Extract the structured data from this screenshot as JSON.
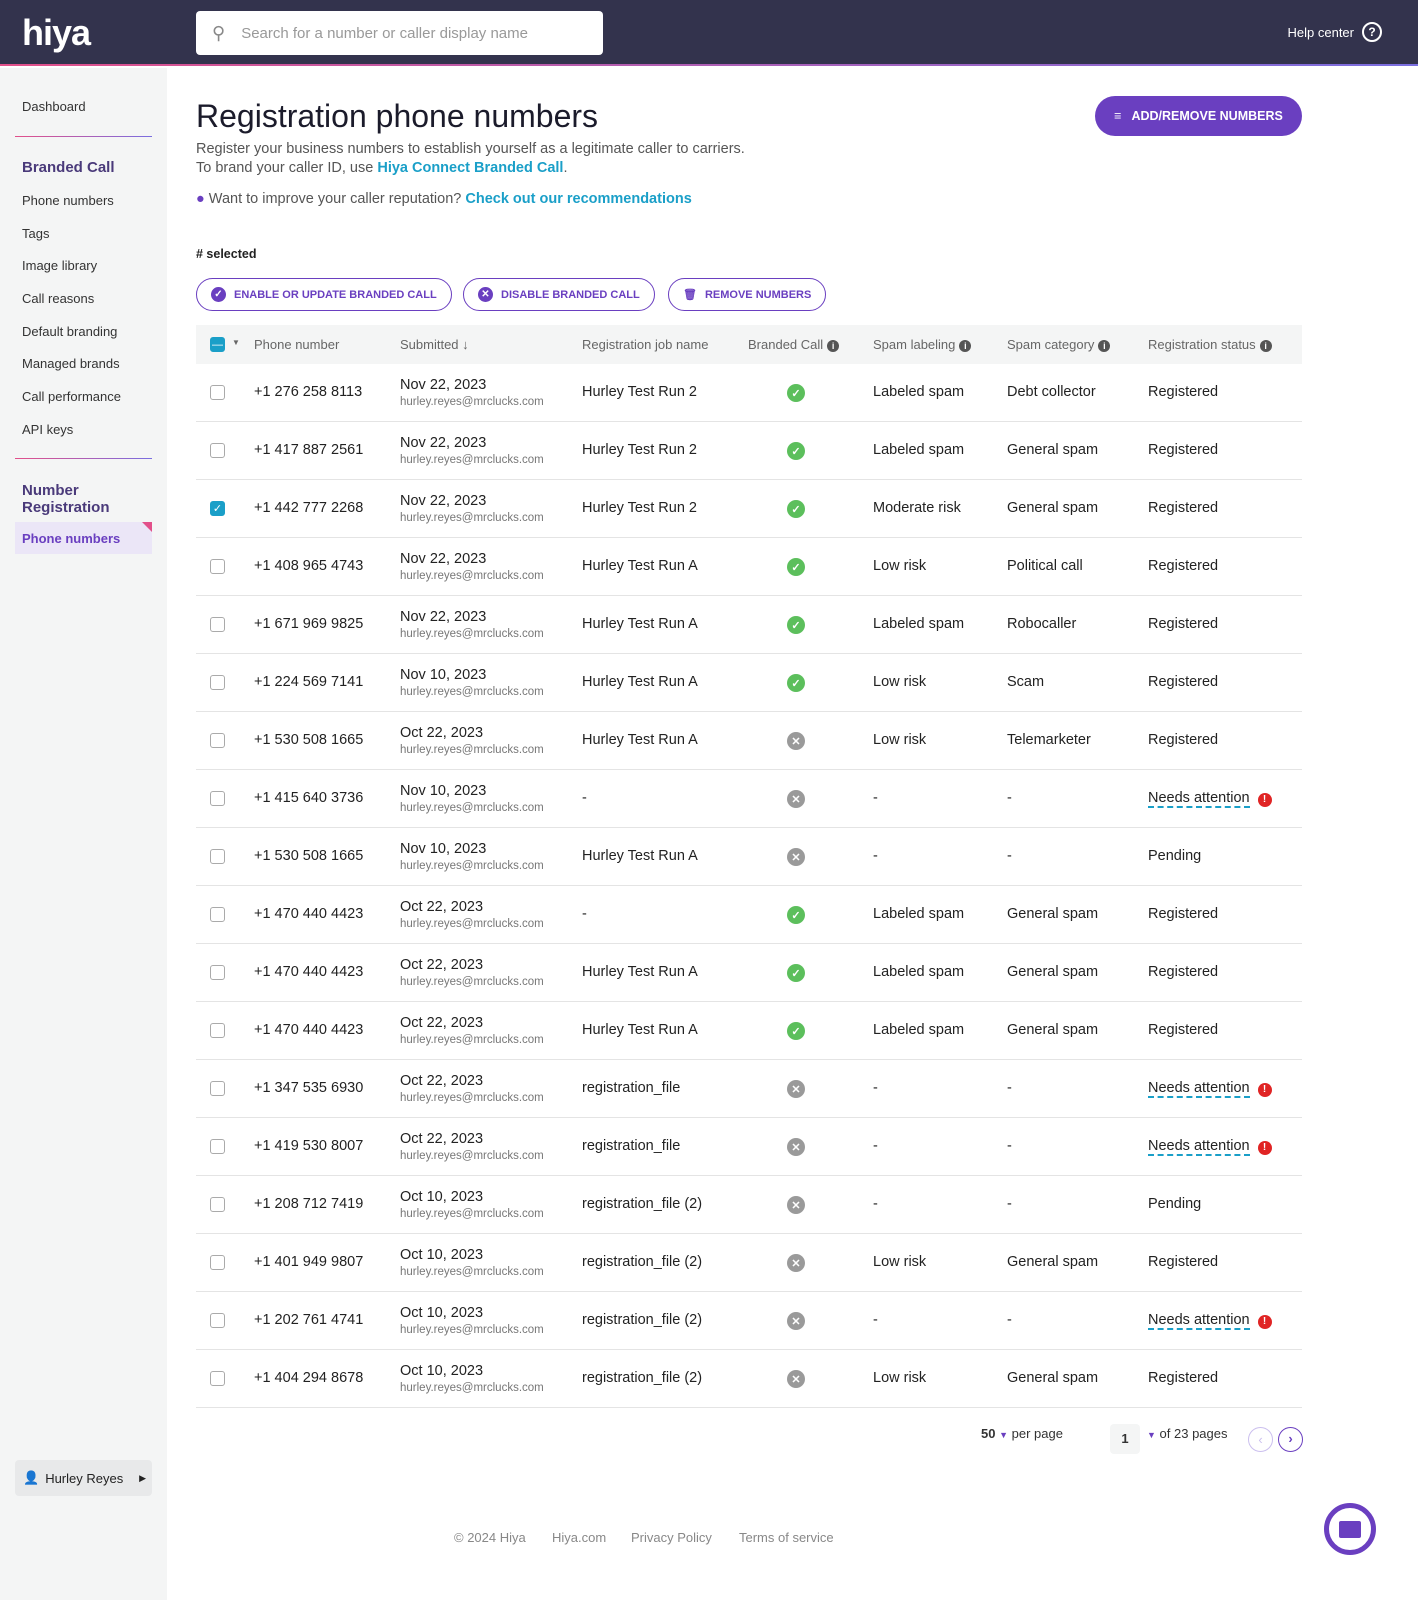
{
  "header": {
    "logo": "hiya",
    "search_placeholder": "Search for a number or caller display name",
    "help": "Help center"
  },
  "sidebar": {
    "dashboard": "Dashboard",
    "branded_call": "Branded Call",
    "items": [
      "Phone numbers",
      "Tags",
      "Image library",
      "Call reasons",
      "Default branding",
      "Managed brands",
      "Call performance",
      "API keys"
    ],
    "number_registration": "Number Registration",
    "active": "Phone numbers",
    "user": "Hurley Reyes"
  },
  "page": {
    "title": "Registration phone numbers",
    "desc": "Register your business numbers to establish yourself as a legitimate caller to carriers. To brand your caller ID, use ",
    "desc_link": "Hiya Connect Branded Call",
    "tip": "Want to improve your caller reputation? ",
    "tip_link": "Check out our recommendations",
    "add_button": "ADD/REMOVE NUMBERS",
    "selected": "# selected",
    "actions": [
      "ENABLE OR UPDATE BRANDED CALL",
      "DISABLE BRANDED CALL",
      "REMOVE NUMBERS"
    ]
  },
  "colors": {
    "accent": "#6a3fc0",
    "link": "#1a9fc8",
    "ok": "#5cbf5c",
    "off": "#9a9a9a",
    "alert": "#e02424"
  },
  "table": {
    "columns": [
      "Phone number",
      "Submitted",
      "Registration job name",
      "Branded Call",
      "Spam labeling",
      "Spam category",
      "Registration status"
    ],
    "rows": [
      [
        "+1 276 258 8113",
        "Nov 22, 2023",
        "hurley.reyes@mrclucks.com",
        "Hurley Test Run 2",
        "on",
        "Labeled spam",
        "Debt collector",
        "Registered",
        false
      ],
      [
        "+1 417 887 2561",
        "Nov 22, 2023",
        "hurley.reyes@mrclucks.com",
        "Hurley Test Run 2",
        "on",
        "Labeled spam",
        "General spam",
        "Registered",
        false
      ],
      [
        "+1 442 777 2268",
        "Nov 22, 2023",
        "hurley.reyes@mrclucks.com",
        "Hurley Test Run 2",
        "on",
        "Moderate risk",
        "General spam",
        "Registered",
        true
      ],
      [
        "+1 408 965 4743",
        "Nov 22, 2023",
        "hurley.reyes@mrclucks.com",
        "Hurley Test Run A",
        "on",
        "Low risk",
        "Political call",
        "Registered",
        false
      ],
      [
        "+1 671 969 9825",
        "Nov 22, 2023",
        "hurley.reyes@mrclucks.com",
        "Hurley Test Run A",
        "on",
        "Labeled spam",
        "Robocaller",
        "Registered",
        false
      ],
      [
        "+1 224 569 7141",
        "Nov 10, 2023",
        "hurley.reyes@mrclucks.com",
        "Hurley Test Run A",
        "on",
        "Low risk",
        "Scam",
        "Registered",
        false
      ],
      [
        "+1 530 508 1665",
        "Oct 22, 2023",
        "hurley.reyes@mrclucks.com",
        "Hurley Test Run A",
        "off",
        "Low risk",
        "Telemarketer",
        "Registered",
        false
      ],
      [
        "+1 415 640 3736",
        "Nov 10, 2023",
        "hurley.reyes@mrclucks.com",
        "-",
        "off",
        "-",
        "-",
        "Needs attention",
        false
      ],
      [
        "+1 530 508 1665",
        "Nov 10, 2023",
        "hurley.reyes@mrclucks.com",
        "Hurley Test Run A",
        "off",
        "-",
        "-",
        "Pending",
        false
      ],
      [
        "+1 470 440 4423",
        "Oct 22, 2023",
        "hurley.reyes@mrclucks.com",
        "-",
        "on",
        "Labeled spam",
        "General spam",
        "Registered",
        false
      ],
      [
        "+1 470 440 4423",
        "Oct 22, 2023",
        "hurley.reyes@mrclucks.com",
        "Hurley Test Run A",
        "on",
        "Labeled spam",
        "General spam",
        "Registered",
        false
      ],
      [
        "+1 470 440 4423",
        "Oct 22, 2023",
        "hurley.reyes@mrclucks.com",
        "Hurley Test Run A",
        "on",
        "Labeled spam",
        "General spam",
        "Registered",
        false
      ],
      [
        "+1 347 535 6930",
        "Oct 22, 2023",
        "hurley.reyes@mrclucks.com",
        "registration_file",
        "off",
        "-",
        "-",
        "Needs attention",
        false
      ],
      [
        "+1 419 530 8007",
        "Oct 22, 2023",
        "hurley.reyes@mrclucks.com",
        "registration_file",
        "off",
        "-",
        "-",
        "Needs attention",
        false
      ],
      [
        "+1 208 712 7419",
        "Oct 10, 2023",
        "hurley.reyes@mrclucks.com",
        "registration_file (2)",
        "off",
        "-",
        "-",
        "Pending",
        false
      ],
      [
        "+1 401 949 9807",
        "Oct 10, 2023",
        "hurley.reyes@mrclucks.com",
        "registration_file (2)",
        "off",
        "Low risk",
        "General spam",
        "Registered",
        false
      ],
      [
        "+1 202 761 4741",
        "Oct 10, 2023",
        "hurley.reyes@mrclucks.com",
        "registration_file (2)",
        "off",
        "-",
        "-",
        "Needs attention",
        false
      ],
      [
        "+1 404 294 8678",
        "Oct 10, 2023",
        "hurley.reyes@mrclucks.com",
        "registration_file (2)",
        "off",
        "Low risk",
        "General spam",
        "Registered",
        false
      ]
    ]
  },
  "pagination": {
    "per_page_value": "50",
    "per_page": "per page",
    "page": "1",
    "of_pages": "of 23 pages"
  },
  "footer": [
    "© 2024 Hiya",
    "Hiya.com",
    "Privacy Policy",
    "Terms of service"
  ]
}
